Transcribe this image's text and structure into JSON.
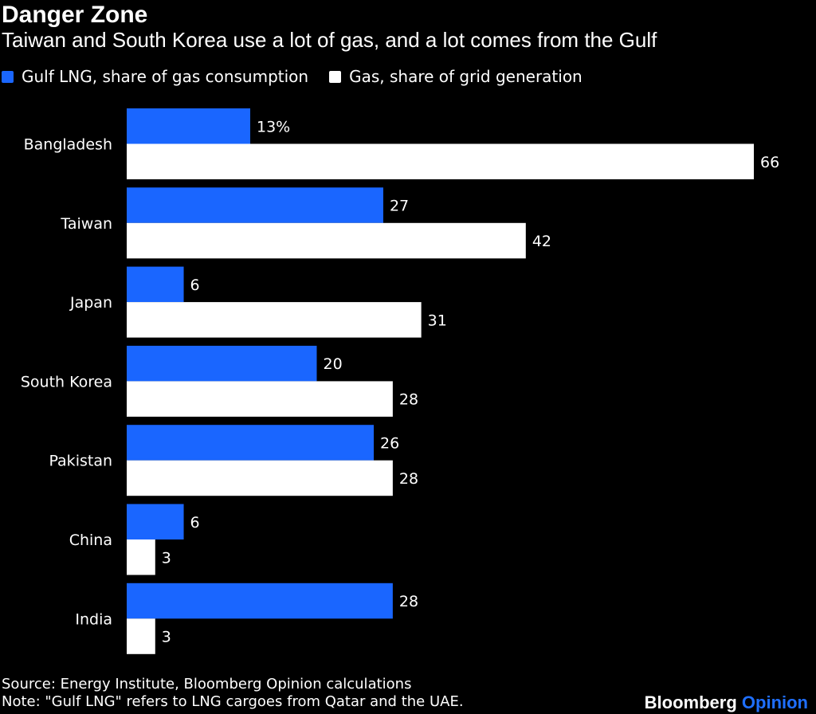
{
  "header": {
    "title": "Danger Zone",
    "subtitle": "Taiwan and South Korea use a lot of gas, and a lot comes from the Gulf"
  },
  "colors": {
    "background": "#000000",
    "gulf_lng": "#1a66ff",
    "gas_grid": "#ffffff",
    "text": "#ffffff"
  },
  "chart_data": {
    "type": "bar",
    "orientation": "horizontal",
    "categories": [
      "Bangladesh",
      "Taiwan",
      "Japan",
      "South Korea",
      "Pakistan",
      "China",
      "India"
    ],
    "series": [
      {
        "name": "Gulf LNG, share of gas consumption",
        "values": [
          13,
          27,
          6,
          20,
          26,
          6,
          28
        ]
      },
      {
        "name": "Gas, share of grid generation",
        "values": [
          66,
          42,
          31,
          28,
          28,
          3,
          3
        ]
      }
    ],
    "value_labels": [
      [
        "13%",
        "27",
        "6",
        "20",
        "26",
        "6",
        "28"
      ],
      [
        "66",
        "42",
        "31",
        "28",
        "28",
        "3",
        "3"
      ]
    ],
    "xlim": [
      0,
      66
    ],
    "grid": false,
    "legend_position": "top-left"
  },
  "footer": {
    "source": "Source: Energy Institute, Bloomberg Opinion calculations",
    "note": "Note: \"Gulf LNG\" refers to LNG cargoes from Qatar and the UAE.",
    "brand_name": "Bloomberg",
    "brand_section": "Opinion"
  }
}
